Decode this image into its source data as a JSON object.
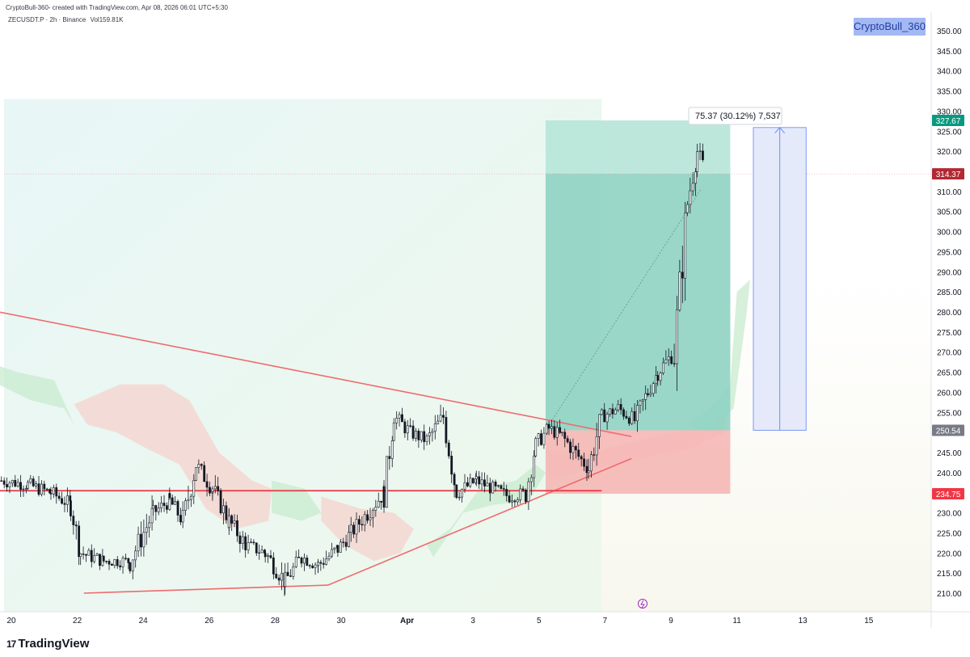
{
  "header": {
    "created_by": "CryptoBull-360- created with TradingView.com, Apr 08, 2026 06:01 UTC+5:30",
    "symbol": "ZECUSDT.P · 2h · Binance",
    "volume": "Vol159.81K",
    "badge": "CryptoBull_360"
  },
  "footer": {
    "brand": "TradingView",
    "brand_mark": "17"
  },
  "colors": {
    "up": "#089981",
    "down": "#f23645",
    "candle": "#131722",
    "target_zone": "#8fd3c3",
    "stop_zone": "#f5b7b5",
    "trendline": "#ef6b6e",
    "support_line": "#e53945",
    "measure_fill": "#e3e8fb",
    "measure_line": "#6d8ff0",
    "kumo_green": "#c8ebcf",
    "kumo_red": "#f6d3cd"
  },
  "chart_data": {
    "type": "candlestick",
    "x_axis": {
      "start": "Mar 19",
      "end": "Apr 16",
      "ticks": [
        {
          "label": "20",
          "day": 20
        },
        {
          "label": "22",
          "day": 22
        },
        {
          "label": "24",
          "day": 24
        },
        {
          "label": "26",
          "day": 26
        },
        {
          "label": "28",
          "day": 28
        },
        {
          "label": "30",
          "day": 30
        },
        {
          "label": "Apr",
          "day": 32
        },
        {
          "label": "3",
          "day": 34
        },
        {
          "label": "5",
          "day": 36
        },
        {
          "label": "7",
          "day": 38
        },
        {
          "label": "9",
          "day": 40
        },
        {
          "label": "11",
          "day": 42
        },
        {
          "label": "13",
          "day": 44
        },
        {
          "label": "15",
          "day": 46
        }
      ]
    },
    "y_axis": {
      "ticks": [
        210,
        215,
        220,
        225,
        230,
        235,
        240,
        245,
        250,
        255,
        260,
        265,
        270,
        275,
        280,
        285,
        290,
        295,
        300,
        305,
        310,
        315,
        320,
        325,
        330,
        335,
        340,
        345,
        350
      ]
    },
    "price_path": [
      [
        19.7,
        238
      ],
      [
        20.5,
        237
      ],
      [
        21.2,
        235
      ],
      [
        21.8,
        232
      ],
      [
        22.1,
        220
      ],
      [
        22.8,
        218
      ],
      [
        23.6,
        218
      ],
      [
        24.3,
        230
      ],
      [
        24.8,
        233
      ],
      [
        25.2,
        228
      ],
      [
        25.6,
        242
      ],
      [
        26.1,
        236
      ],
      [
        26.6,
        228
      ],
      [
        27.1,
        222
      ],
      [
        27.7,
        220
      ],
      [
        28.3,
        213
      ],
      [
        28.8,
        219
      ],
      [
        29.3,
        217
      ],
      [
        29.9,
        221
      ],
      [
        30.3,
        225
      ],
      [
        30.8,
        230
      ],
      [
        31.3,
        235
      ],
      [
        31.6,
        254
      ],
      [
        32.1,
        250
      ],
      [
        32.6,
        248
      ],
      [
        33.1,
        254
      ],
      [
        33.5,
        235
      ],
      [
        34.1,
        238
      ],
      [
        34.6,
        236
      ],
      [
        35.1,
        234
      ],
      [
        35.6,
        235
      ],
      [
        35.9,
        247
      ],
      [
        36.3,
        251
      ],
      [
        36.7,
        249
      ],
      [
        37.2,
        244
      ],
      [
        37.5,
        241
      ],
      [
        37.9,
        254
      ],
      [
        38.4,
        256
      ],
      [
        38.9,
        253
      ],
      [
        39.3,
        260
      ],
      [
        39.6,
        265
      ],
      [
        40.1,
        270
      ],
      [
        40.5,
        307
      ],
      [
        40.8,
        320
      ],
      [
        41.0,
        316
      ]
    ],
    "levels": {
      "current_price": 314.37,
      "target": 327.67,
      "entry": 250.54,
      "stop": 234.75
    },
    "position": {
      "type": "long",
      "from_day": 36.2,
      "to_day": 41.8,
      "entry": 250.54,
      "target": 327.67,
      "stop": 234.75
    },
    "measurement": {
      "label": "75.37 (30.12%) 7,537",
      "from_price": 250.54,
      "to_price": 325.9,
      "from_day": 42.5,
      "to_day": 44.1
    },
    "descending_trendline": [
      [
        19.0,
        281
      ],
      [
        38.8,
        249
      ]
    ],
    "ascending_trendline": [
      [
        22.2,
        210
      ],
      [
        29.6,
        212
      ],
      [
        38.8,
        243.5
      ]
    ],
    "support_line": {
      "price": 235.5,
      "from_day": 19.0,
      "to_day": 37.9
    },
    "shade_region": {
      "from_day": 19.0,
      "to_day": 37.9,
      "top": 333
    }
  }
}
